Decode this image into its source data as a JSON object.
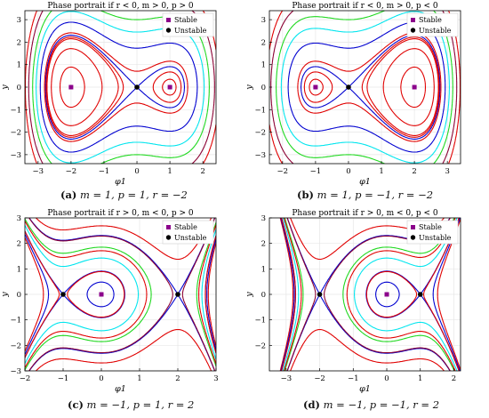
{
  "chart_data": [
    {
      "type": "line",
      "title": "Phase portrait if r < 0, m > 0, p > 0",
      "xlabel": "φ1",
      "ylabel": "y",
      "xlim": [
        -3.4,
        2.4
      ],
      "ylim": [
        -3.4,
        3.4
      ],
      "xticks": [
        -3,
        -2,
        -1,
        0,
        1,
        2
      ],
      "yticks": [
        -3,
        -2,
        -1,
        0,
        1,
        2,
        3
      ],
      "xtick_labels": [
        "−3",
        "−2",
        "−1",
        "0",
        "1",
        "2"
      ],
      "ytick_labels": [
        "−3",
        "−2",
        "−1",
        "0",
        "1",
        "2",
        "3"
      ],
      "params": {
        "m": 1,
        "p": 1,
        "r": -2
      },
      "legend": {
        "position": "top-right",
        "entries": [
          "Stable",
          "Unstable"
        ]
      },
      "stable_points": [
        [
          -2,
          0
        ],
        [
          1,
          0
        ]
      ],
      "unstable_points": [
        [
          0,
          0
        ]
      ],
      "caption": {
        "label": "(a)",
        "text": "m = 1, p = 1, r = −2"
      }
    },
    {
      "type": "line",
      "title": "Phase portrait if r < 0, m > 0, p < 0",
      "xlabel": "φ1",
      "ylabel": "y",
      "xlim": [
        -2.4,
        3.4
      ],
      "ylim": [
        -3.4,
        3.4
      ],
      "xticks": [
        -2,
        -1,
        0,
        1,
        2,
        3
      ],
      "yticks": [
        -3,
        -2,
        -1,
        0,
        1,
        2,
        3
      ],
      "xtick_labels": [
        "−2",
        "−1",
        "0",
        "1",
        "2",
        "3"
      ],
      "ytick_labels": [
        "−3",
        "−2",
        "−1",
        "0",
        "1",
        "2",
        "3"
      ],
      "params": {
        "m": 1,
        "p": -1,
        "r": -2
      },
      "legend": {
        "position": "top-right",
        "entries": [
          "Stable",
          "Unstable"
        ]
      },
      "stable_points": [
        [
          -1,
          0
        ],
        [
          2,
          0
        ]
      ],
      "unstable_points": [
        [
          0,
          0
        ]
      ],
      "caption": {
        "label": "(b)",
        "text": "m = 1, p = −1, r = −2"
      }
    },
    {
      "type": "line",
      "title": "Phase portrait if r > 0, m < 0, p > 0",
      "xlabel": "φ1",
      "ylabel": "y",
      "xlim": [
        -2,
        3
      ],
      "ylim": [
        -3,
        3
      ],
      "xticks": [
        -2,
        -1,
        0,
        1,
        2,
        3
      ],
      "yticks": [
        -3,
        -2,
        -1,
        0,
        1,
        2,
        3
      ],
      "xtick_labels": [
        "−2",
        "−1",
        "0",
        "1",
        "2",
        "3"
      ],
      "ytick_labels": [
        "−3",
        "−2",
        "−1",
        "0",
        "1",
        "2",
        "3"
      ],
      "params": {
        "m": -1,
        "p": 1,
        "r": 2
      },
      "legend": {
        "position": "top-right",
        "entries": [
          "Stable",
          "Unstable"
        ]
      },
      "stable_points": [
        [
          0,
          0
        ]
      ],
      "unstable_points": [
        [
          -1,
          0
        ],
        [
          2,
          0
        ]
      ],
      "caption": {
        "label": "(c)",
        "text": "m = −1, p = 1, r = 2"
      }
    },
    {
      "type": "line",
      "title": "Phase portrait if r > 0, m < 0, p < 0",
      "xlabel": "φ1",
      "ylabel": "y",
      "xlim": [
        -3.5,
        2.2
      ],
      "ylim": [
        -3,
        3
      ],
      "xticks": [
        -3,
        -2,
        -1,
        0,
        1,
        2
      ],
      "yticks": [
        -2,
        -1,
        0,
        1,
        2,
        3
      ],
      "xtick_labels": [
        "−3",
        "−2",
        "−1",
        "0",
        "1",
        "2"
      ],
      "ytick_labels": [
        "−2",
        "−1",
        "0",
        "1",
        "2",
        "3"
      ],
      "params": {
        "m": -1,
        "p": -1,
        "r": 2
      },
      "legend": {
        "position": "top-right",
        "entries": [
          "Stable",
          "Unstable"
        ]
      },
      "stable_points": [
        [
          0,
          0
        ]
      ],
      "unstable_points": [
        [
          -2,
          0
        ],
        [
          1,
          0
        ]
      ],
      "caption": {
        "label": "(d)",
        "text": "m = −1, p = −1, r = 2"
      }
    }
  ],
  "colors": {
    "level_colors": [
      "#e00000",
      "#0000d0",
      "#00e5ee",
      "#1ed81e",
      "#8b0033"
    ],
    "stable_marker": "#8b008b",
    "unstable_marker": "#000000",
    "grid": "#e6e6e6"
  }
}
